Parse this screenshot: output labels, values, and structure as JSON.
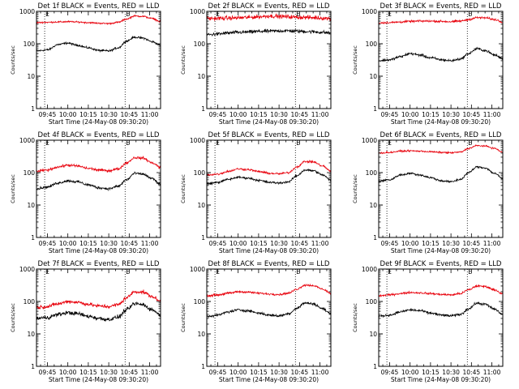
{
  "chart_data": {
    "type": "line",
    "layout": "3x3 grid of log-scale time series panels",
    "x_tick_labels": [
      "09:45",
      "10:00",
      "10:15",
      "10:30",
      "10:45",
      "11:00"
    ],
    "x_tick_minutes": [
      0,
      15,
      30,
      45,
      60,
      75
    ],
    "x_range_minutes_from_0945": [
      -8,
      83
    ],
    "xlabel": "Start Time (24-May-08 09:30:20)",
    "ylabel": "Counts/sec",
    "y_scale": "log",
    "ylim": [
      1,
      1000
    ],
    "y_tick_labels": [
      "1",
      "10",
      "100",
      "1000"
    ],
    "y_tick_values": [
      1,
      10,
      100,
      1000
    ],
    "event_marker_label": "E",
    "event_marker_minutes": [
      -2,
      57
    ],
    "series_colors": {
      "events": "#000000",
      "lld": "#e8000b"
    },
    "knot_minutes": [
      -8,
      0,
      8,
      15,
      22,
      30,
      38,
      45,
      52,
      58,
      64,
      70,
      77,
      83
    ],
    "panels": [
      {
        "title": "Det 1f BLACK = Events, RED = LLD",
        "series": [
          {
            "name": "Events",
            "values": [
              60,
              65,
              95,
              105,
              90,
              75,
              62,
              60,
              75,
              120,
              160,
              150,
              115,
              90
            ],
            "noise": 0.04
          },
          {
            "name": "LLD",
            "values": [
              450,
              460,
              470,
              480,
              470,
              450,
              430,
              420,
              460,
              580,
              720,
              700,
              600,
              480
            ],
            "noise": 0.03
          }
        ]
      },
      {
        "title": "Det 2f BLACK = Events, RED = LLD",
        "series": [
          {
            "name": "Events",
            "values": [
              190,
              200,
              215,
              225,
              230,
              240,
              245,
              250,
              250,
              245,
              240,
              235,
              225,
              215
            ],
            "noise": 0.07
          },
          {
            "name": "LLD",
            "values": [
              600,
              610,
              620,
              630,
              650,
              680,
              720,
              700,
              680,
              660,
              650,
              640,
              620,
              600
            ],
            "noise": 0.08
          }
        ]
      },
      {
        "title": "Det 3f BLACK = Events, RED = LLD",
        "series": [
          {
            "name": "Events",
            "values": [
              30,
              32,
              40,
              50,
              45,
              37,
              32,
              30,
              34,
              50,
              70,
              62,
              45,
              35
            ],
            "noise": 0.05
          },
          {
            "name": "LLD",
            "values": [
              440,
              450,
              470,
              490,
              500,
              500,
              490,
              480,
              500,
              560,
              640,
              630,
              560,
              470
            ],
            "noise": 0.04
          }
        ]
      },
      {
        "title": "Det 4f BLACK = Events, RED = LLD",
        "series": [
          {
            "name": "Events",
            "values": [
              32,
              36,
              48,
              56,
              52,
              42,
              34,
              32,
              38,
              60,
              95,
              90,
              65,
              42
            ],
            "noise": 0.05
          },
          {
            "name": "LLD",
            "values": [
              110,
              120,
              150,
              170,
              160,
              135,
              120,
              115,
              130,
              200,
              290,
              280,
              200,
              145
            ],
            "noise": 0.05
          }
        ]
      },
      {
        "title": "Det 5f BLACK = Events, RED = LLD",
        "series": [
          {
            "name": "Events",
            "values": [
              45,
              50,
              62,
              72,
              68,
              58,
              50,
              48,
              52,
              80,
              120,
              115,
              85,
              58
            ],
            "noise": 0.04
          },
          {
            "name": "LLD",
            "values": [
              85,
              90,
              110,
              130,
              125,
              108,
              95,
              92,
              100,
              150,
              220,
              215,
              160,
              110
            ],
            "noise": 0.04
          }
        ]
      },
      {
        "title": "Det 6f BLACK = Events, RED = LLD",
        "series": [
          {
            "name": "Events",
            "values": [
              55,
              60,
              85,
              95,
              85,
              70,
              56,
              52,
              62,
              100,
              150,
              140,
              95,
              65
            ],
            "noise": 0.04
          },
          {
            "name": "LLD",
            "values": [
              400,
              420,
              460,
              470,
              460,
              440,
              420,
              410,
              430,
              560,
              680,
              660,
              560,
              420
            ],
            "noise": 0.03
          }
        ]
      },
      {
        "title": "Det 7f BLACK = Events, RED = LLD",
        "series": [
          {
            "name": "Events",
            "values": [
              30,
              32,
              40,
              45,
              42,
              35,
              30,
              28,
              33,
              55,
              85,
              80,
              55,
              38
            ],
            "noise": 0.08
          },
          {
            "name": "LLD",
            "values": [
              65,
              70,
              85,
              100,
              95,
              82,
              72,
              70,
              80,
              130,
              200,
              195,
              140,
              100
            ],
            "noise": 0.07
          }
        ]
      },
      {
        "title": "Det 8f BLACK = Events, RED = LLD",
        "series": [
          {
            "name": "Events",
            "values": [
              35,
              38,
              48,
              55,
              52,
              44,
              38,
              36,
              42,
              62,
              90,
              85,
              60,
              42
            ],
            "noise": 0.05
          },
          {
            "name": "LLD",
            "values": [
              150,
              160,
              180,
              200,
              195,
              180,
              170,
              165,
              180,
              240,
              320,
              310,
              240,
              180
            ],
            "noise": 0.04
          }
        ]
      },
      {
        "title": "Det 9f BLACK = Events, RED = LLD",
        "series": [
          {
            "name": "Events",
            "values": [
              35,
              38,
              48,
              55,
              52,
              44,
              38,
              36,
              40,
              60,
              88,
              82,
              58,
              40
            ],
            "noise": 0.05
          },
          {
            "name": "LLD",
            "values": [
              150,
              160,
              175,
              190,
              185,
              175,
              165,
              160,
              175,
              230,
              300,
              290,
              230,
              170
            ],
            "noise": 0.04
          }
        ]
      }
    ]
  }
}
